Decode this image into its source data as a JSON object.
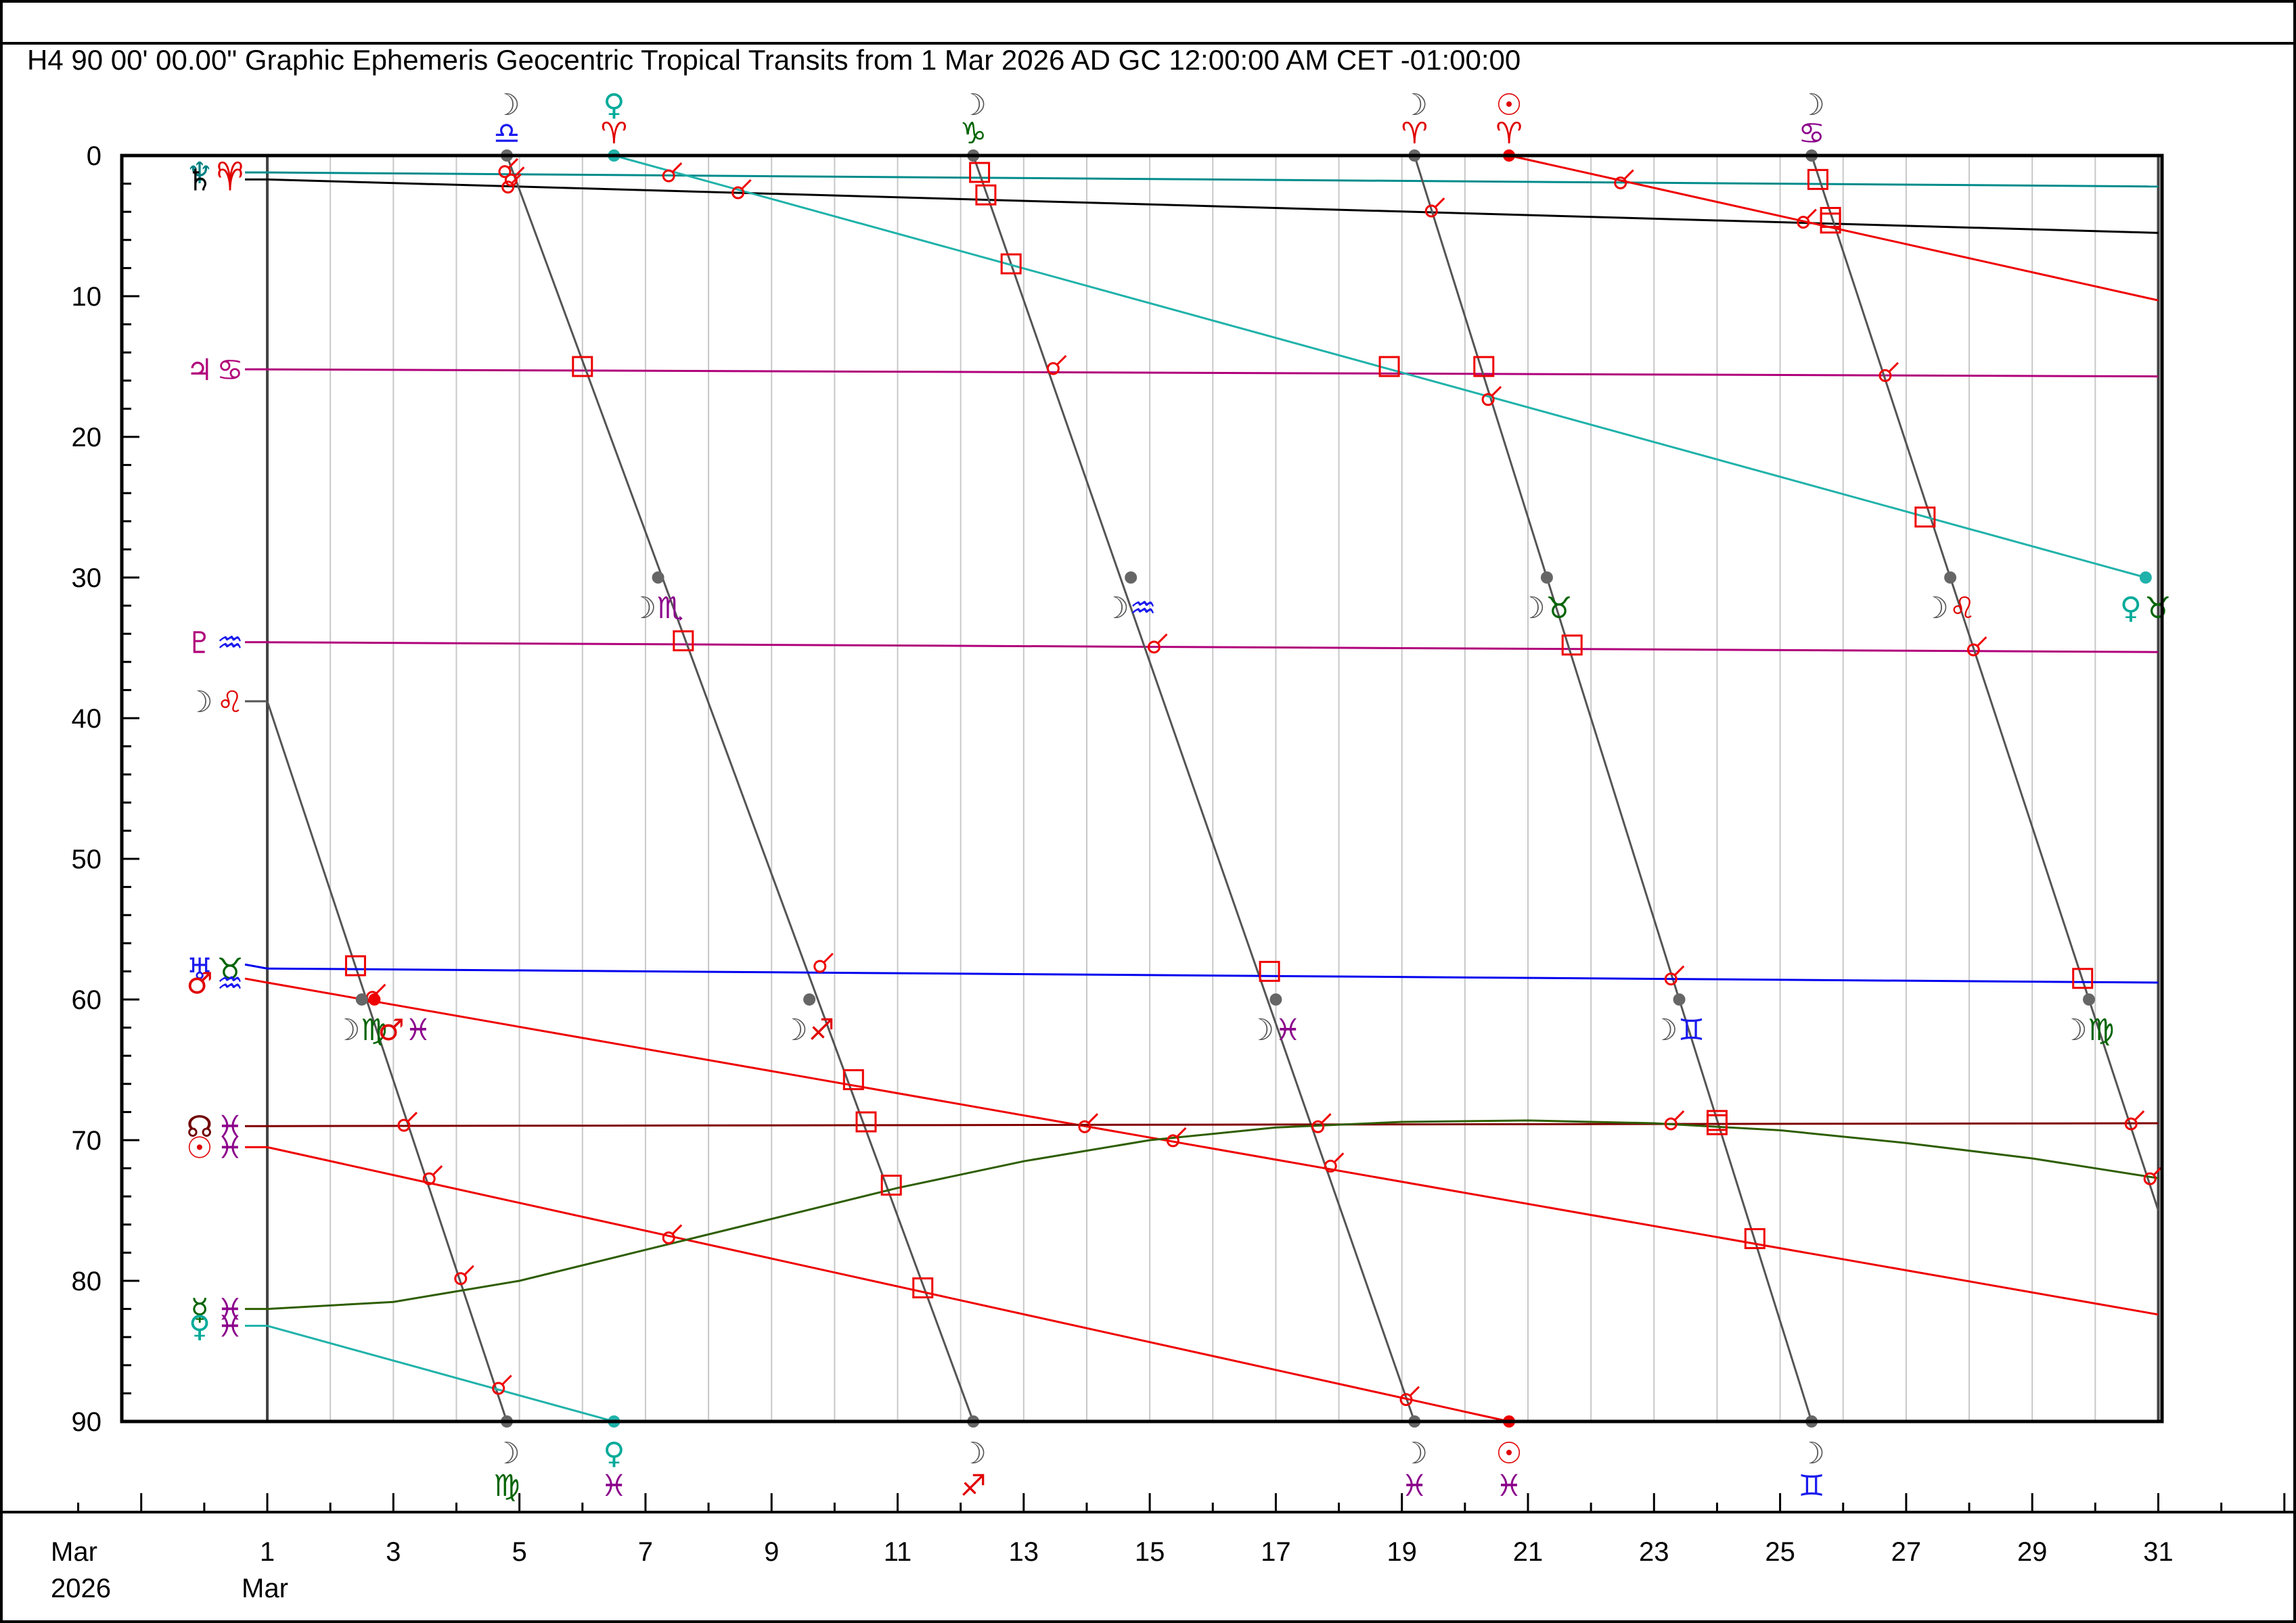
{
  "chart_data": {
    "type": "line",
    "title": "H4   90 00' 00.00\" Graphic Ephemeris Geocentric Tropical Transits from 1 Mar 2026 AD GC 12:00:00 AM CET -01:00:00",
    "xlabel_month": "Mar",
    "xlabel_year": "2026",
    "xlabel_start_month": "Mar",
    "x_ticks": [
      "1",
      "3",
      "5",
      "7",
      "9",
      "11",
      "13",
      "15",
      "17",
      "19",
      "21",
      "23",
      "25",
      "27",
      "29",
      "31"
    ],
    "y_ticks": [
      "0",
      "10",
      "20",
      "30",
      "40",
      "50",
      "60",
      "70",
      "80",
      "90"
    ],
    "xlim": [
      -2.5,
      33.5
    ],
    "ylim": [
      0,
      90
    ],
    "series": [
      {
        "name": "Neptune",
        "start_glyphs": [
          {
            "g": "♆",
            "c": "#008080"
          },
          {
            "g": "♈",
            "c": "#e00000"
          }
        ],
        "color": "#008b8b",
        "x": [
          1,
          31
        ],
        "y": [
          1.2,
          2.2
        ]
      },
      {
        "name": "Saturn",
        "start_glyphs": [
          {
            "g": "♄",
            "c": "#000000"
          },
          {
            "g": "♈",
            "c": "#e00000"
          }
        ],
        "color": "#000000",
        "x": [
          1,
          31
        ],
        "y": [
          1.7,
          5.5
        ]
      },
      {
        "name": "Jupiter",
        "start_glyphs": [
          {
            "g": "♃",
            "c": "#b0007a"
          },
          {
            "g": "♋",
            "c": "#b0007a"
          }
        ],
        "color": "#b0007a",
        "x": [
          1,
          31
        ],
        "y": [
          15.2,
          15.7
        ]
      },
      {
        "name": "Pluto",
        "start_glyphs": [
          {
            "g": "♇",
            "c": "#b0007a"
          },
          {
            "g": "♒",
            "c": "#1a1aee"
          }
        ],
        "color": "#b0007a",
        "x": [
          1,
          31
        ],
        "y": [
          34.6,
          35.3
        ]
      },
      {
        "name": "Moon",
        "start_glyphs": [
          {
            "g": "☽",
            "c": "#555555"
          },
          {
            "g": "♌",
            "c": "#e00000"
          }
        ],
        "color": "#555555",
        "x": [
          1,
          4.8,
          4.8,
          12.2,
          12.2,
          19.2,
          19.2,
          25.5,
          25.5,
          31
        ],
        "y": [
          38.8,
          90,
          0,
          90,
          0,
          90,
          0,
          90,
          0,
          75
        ]
      },
      {
        "name": "Uranus",
        "start_glyphs": [
          {
            "g": "♅",
            "c": "#1a1aee"
          },
          {
            "g": "♉",
            "c": "#006400"
          }
        ],
        "color": "#0000ee",
        "x": [
          1,
          31
        ],
        "y": [
          57.8,
          58.8
        ]
      },
      {
        "name": "Mars",
        "start_glyphs": [
          {
            "g": "♂",
            "c": "#e00000"
          },
          {
            "g": "♒",
            "c": "#1a1aee"
          }
        ],
        "color": "#ee0000",
        "x": [
          1,
          31
        ],
        "y": [
          58.8,
          82.4
        ]
      },
      {
        "name": "Node",
        "start_glyphs": [
          {
            "g": "☊",
            "c": "#700000"
          },
          {
            "g": "♓",
            "c": "#8b008b"
          }
        ],
        "color": "#800000",
        "x": [
          1,
          31
        ],
        "y": [
          69.0,
          68.8
        ]
      },
      {
        "name": "Sun",
        "start_glyphs": [
          {
            "g": "☉",
            "c": "#e00000"
          },
          {
            "g": "♓",
            "c": "#8b008b"
          }
        ],
        "color": "#ee0000",
        "x": [
          1,
          20.7,
          20.7,
          31
        ],
        "y": [
          70.5,
          90,
          0,
          10.3
        ]
      },
      {
        "name": "Mercury",
        "start_glyphs": [
          {
            "g": "☿",
            "c": "#006400"
          },
          {
            "g": "♓",
            "c": "#8b008b"
          }
        ],
        "color": "#2e5e00",
        "x": [
          1,
          3,
          5,
          7,
          9,
          11,
          13,
          15,
          17,
          19,
          21,
          23,
          25,
          27,
          29,
          31
        ],
        "y": [
          82,
          81.5,
          80,
          77.8,
          75.6,
          73.4,
          71.5,
          70,
          69.1,
          68.7,
          68.6,
          68.8,
          69.3,
          70.2,
          71.3,
          72.7
        ]
      },
      {
        "name": "Venus",
        "start_glyphs": [
          {
            "g": "♀",
            "c": "#00aa99"
          },
          {
            "g": "♓",
            "c": "#8b008b"
          }
        ],
        "color": "#20b2aa",
        "x": [
          1,
          6.5,
          6.5,
          30.8
        ],
        "y": [
          83.2,
          90,
          0,
          30
        ]
      }
    ],
    "sign_change_labels": [
      {
        "x": 4.8,
        "pos": "top",
        "planet": "☽",
        "pc": "#555555",
        "sign": "♎",
        "sc": "#1a1aee"
      },
      {
        "x": 6.5,
        "pos": "top",
        "planet": "♀",
        "pc": "#00aa99",
        "sign": "♈",
        "sc": "#e00000"
      },
      {
        "x": 12.2,
        "pos": "top",
        "planet": "☽",
        "pc": "#555555",
        "sign": "♑",
        "sc": "#006400"
      },
      {
        "x": 19.2,
        "pos": "top",
        "planet": "☽",
        "pc": "#555555",
        "sign": "♈",
        "sc": "#e00000"
      },
      {
        "x": 20.7,
        "pos": "top",
        "planet": "☉",
        "pc": "#e00000",
        "sign": "♈",
        "sc": "#e00000"
      },
      {
        "x": 25.5,
        "pos": "top",
        "planet": "☽",
        "pc": "#555555",
        "sign": "♋",
        "sc": "#8b008b"
      },
      {
        "x": 4.8,
        "pos": "bottom",
        "planet": "☽",
        "pc": "#555555",
        "sign": "♍",
        "sc": "#006400"
      },
      {
        "x": 6.5,
        "pos": "bottom",
        "planet": "♀",
        "pc": "#00aa99",
        "sign": "♓",
        "sc": "#8b008b"
      },
      {
        "x": 12.2,
        "pos": "bottom",
        "planet": "☽",
        "pc": "#555555",
        "sign": "♐",
        "sc": "#e00000"
      },
      {
        "x": 19.2,
        "pos": "bottom",
        "planet": "☽",
        "pc": "#555555",
        "sign": "♓",
        "sc": "#8b008b"
      },
      {
        "x": 20.7,
        "pos": "bottom",
        "planet": "☉",
        "pc": "#e00000",
        "sign": "♓",
        "sc": "#8b008b"
      },
      {
        "x": 25.5,
        "pos": "bottom",
        "planet": "☽",
        "pc": "#555555",
        "sign": "♊",
        "sc": "#1a1aee"
      }
    ],
    "inner_labels": [
      {
        "x": 7.2,
        "y": 30,
        "text": "☽",
        "c": "#555555",
        "sign": "♏",
        "sc": "#8b008b"
      },
      {
        "x": 14.7,
        "y": 30,
        "text": "☽",
        "c": "#555555",
        "sign": "♒",
        "sc": "#1a1aee"
      },
      {
        "x": 21.3,
        "y": 30,
        "text": "☽",
        "c": "#555555",
        "sign": "♉",
        "sc": "#006400"
      },
      {
        "x": 27.7,
        "y": 30,
        "text": "☽",
        "c": "#555555",
        "sign": "♌",
        "sc": "#e00000"
      },
      {
        "x": 30.8,
        "y": 30,
        "text": "♀",
        "c": "#00aa99",
        "sign": "♉",
        "sc": "#006400"
      },
      {
        "x": 2.5,
        "y": 60,
        "text": "☽",
        "c": "#555555",
        "sign": "♍",
        "sc": "#006400"
      },
      {
        "x": 3.2,
        "y": 60,
        "text": "♂",
        "c": "#e00000",
        "sign": "♓",
        "sc": "#8b008b"
      },
      {
        "x": 9.6,
        "y": 60,
        "text": "☽",
        "c": "#555555",
        "sign": "♐",
        "sc": "#e00000"
      },
      {
        "x": 17.0,
        "y": 60,
        "text": "☽",
        "c": "#555555",
        "sign": "♓",
        "sc": "#8b008b"
      },
      {
        "x": 23.4,
        "y": 60,
        "text": "☽",
        "c": "#555555",
        "sign": "♊",
        "sc": "#1a1aee"
      },
      {
        "x": 29.9,
        "y": 60,
        "text": "☽",
        "c": "#555555",
        "sign": "♍",
        "sc": "#006400"
      }
    ],
    "squares": [
      [
        12.3,
        1.2
      ],
      [
        12.4,
        2.8
      ],
      [
        12.8,
        7.7
      ],
      [
        6.0,
        15
      ],
      [
        18.8,
        15
      ],
      [
        20.3,
        15
      ],
      [
        25.6,
        1.7
      ],
      [
        25.8,
        4.4
      ],
      [
        25.8,
        4.8
      ],
      [
        27.3,
        25.7
      ],
      [
        7.6,
        34.5
      ],
      [
        21.7,
        34.8
      ],
      [
        2.4,
        57.6
      ],
      [
        16.9,
        58.0
      ],
      [
        29.8,
        58.5
      ],
      [
        10.3,
        65.7
      ],
      [
        10.5,
        68.7
      ],
      [
        10.9,
        73.2
      ],
      [
        11.4,
        80.5
      ],
      [
        24.0,
        68.6
      ],
      [
        24.0,
        68.9
      ],
      [
        24.6,
        77.0
      ]
    ],
    "oppositions": [
      [
        4.8,
        1.0
      ],
      [
        4.9,
        1.6
      ],
      [
        4.85,
        2.1
      ],
      [
        7.4,
        1.3
      ],
      [
        8.5,
        2.5
      ],
      [
        19.5,
        3.8
      ],
      [
        22.5,
        1.8
      ],
      [
        25.4,
        4.6
      ],
      [
        13.5,
        15
      ],
      [
        20.4,
        17.2
      ],
      [
        26.7,
        15.5
      ],
      [
        15.1,
        34.8
      ],
      [
        28.1,
        35.0
      ],
      [
        9.8,
        57.5
      ],
      [
        2.7,
        59.7
      ],
      [
        23.3,
        58.4
      ],
      [
        3.2,
        68.8
      ],
      [
        3.6,
        72.6
      ],
      [
        4.1,
        79.7
      ],
      [
        4.7,
        87.5
      ],
      [
        7.4,
        76.8
      ],
      [
        14.0,
        68.9
      ],
      [
        15.4,
        69.9
      ],
      [
        17.7,
        68.9
      ],
      [
        17.9,
        71.7
      ],
      [
        19.1,
        88.3
      ],
      [
        23.3,
        68.7
      ],
      [
        30.6,
        68.7
      ],
      [
        30.9,
        72.6
      ]
    ],
    "dots": [
      {
        "x": 4.8,
        "y": 0,
        "c": "#666666"
      },
      {
        "x": 6.5,
        "y": 0,
        "c": "#20b2aa"
      },
      {
        "x": 12.2,
        "y": 0,
        "c": "#666666"
      },
      {
        "x": 19.2,
        "y": 0,
        "c": "#666666"
      },
      {
        "x": 20.7,
        "y": 0,
        "c": "#ee0000"
      },
      {
        "x": 25.5,
        "y": 0,
        "c": "#666666"
      },
      {
        "x": 4.8,
        "y": 90,
        "c": "#666666"
      },
      {
        "x": 6.5,
        "y": 90,
        "c": "#20b2aa"
      },
      {
        "x": 12.2,
        "y": 90,
        "c": "#666666"
      },
      {
        "x": 19.2,
        "y": 90,
        "c": "#666666"
      },
      {
        "x": 20.7,
        "y": 90,
        "c": "#ee0000"
      },
      {
        "x": 25.5,
        "y": 90,
        "c": "#666666"
      },
      {
        "x": 7.2,
        "y": 30,
        "c": "#666666"
      },
      {
        "x": 14.7,
        "y": 30,
        "c": "#666666"
      },
      {
        "x": 21.3,
        "y": 30,
        "c": "#666666"
      },
      {
        "x": 27.7,
        "y": 30,
        "c": "#666666"
      },
      {
        "x": 30.8,
        "y": 30,
        "c": "#20b2aa"
      },
      {
        "x": 2.5,
        "y": 60,
        "c": "#666666"
      },
      {
        "x": 2.7,
        "y": 60,
        "c": "#ee0000"
      },
      {
        "x": 9.6,
        "y": 60,
        "c": "#666666"
      },
      {
        "x": 17.0,
        "y": 60,
        "c": "#666666"
      },
      {
        "x": 23.4,
        "y": 60,
        "c": "#666666"
      },
      {
        "x": 29.9,
        "y": 60,
        "c": "#666666"
      }
    ],
    "grid": true,
    "legend": "left"
  }
}
